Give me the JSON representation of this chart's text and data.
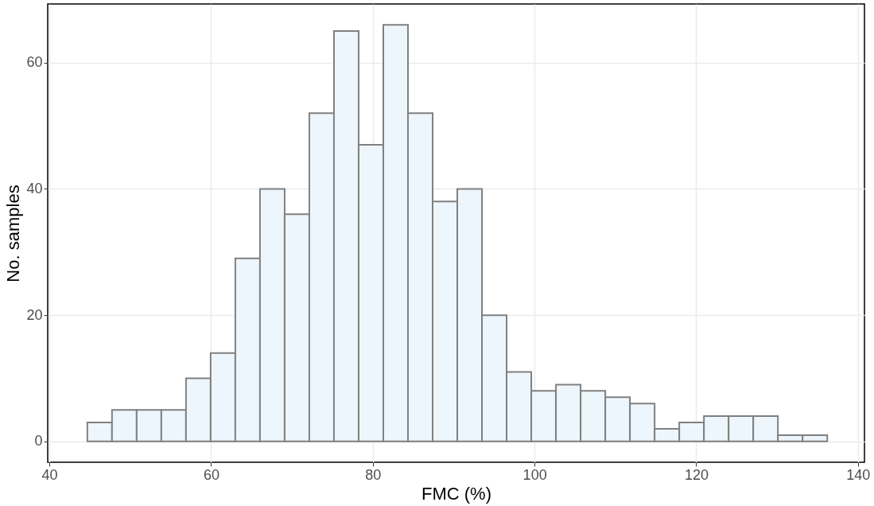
{
  "chart_data": {
    "type": "histogram",
    "xlabel": "FMC (%)",
    "ylabel": "No. samples",
    "bins": [
      44.7,
      47.75,
      50.8,
      53.85,
      56.9,
      59.95,
      63.0,
      66.05,
      69.1,
      72.15,
      75.2,
      78.25,
      81.3,
      84.35,
      87.4,
      90.45,
      93.5,
      96.55,
      99.6,
      102.65,
      105.7,
      108.75,
      111.8,
      114.85,
      117.9,
      120.95,
      124.0,
      127.05,
      130.1,
      133.15,
      136.2
    ],
    "values": [
      3,
      5,
      5,
      5,
      10,
      14,
      29,
      40,
      36,
      52,
      65,
      47,
      66,
      52,
      38,
      40,
      20,
      11,
      8,
      9,
      8,
      7,
      6,
      2,
      3,
      4,
      4,
      4,
      1,
      1
    ],
    "color": "#eef6fd",
    "xlim": [
      39.8,
      140.8
    ],
    "xticks": [
      40,
      60,
      80,
      100,
      120,
      140
    ],
    "ylim": [
      -3.3,
      69.3
    ],
    "yticks": [
      0,
      20,
      40,
      60
    ],
    "grid": true
  }
}
